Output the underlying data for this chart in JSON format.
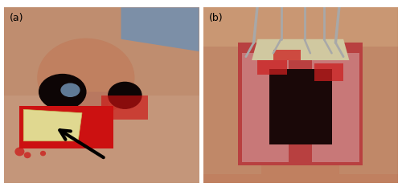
{
  "figsize": [
    5.0,
    2.33
  ],
  "dpi": 100,
  "background_color": "#ffffff",
  "border_color": "#c8c8c8",
  "label_a": "(a)",
  "label_b": "(b)",
  "label_fontsize": 9,
  "label_color": "#000000",
  "panel_a": {
    "skin_color": "#c4967a",
    "nostril_color": "#0d0505",
    "wound_color": "#cc1111",
    "specimen_color": "#e0d890",
    "arrow_color": "#000000",
    "blue_strap": "#6090c0"
  },
  "panel_b": {
    "skin_color": "#c08060",
    "wound_color": "#b84040",
    "instrument_color": "#a8a8a8",
    "cavity_color": "#1a0808",
    "tissue_color": "#d0c8a0"
  }
}
